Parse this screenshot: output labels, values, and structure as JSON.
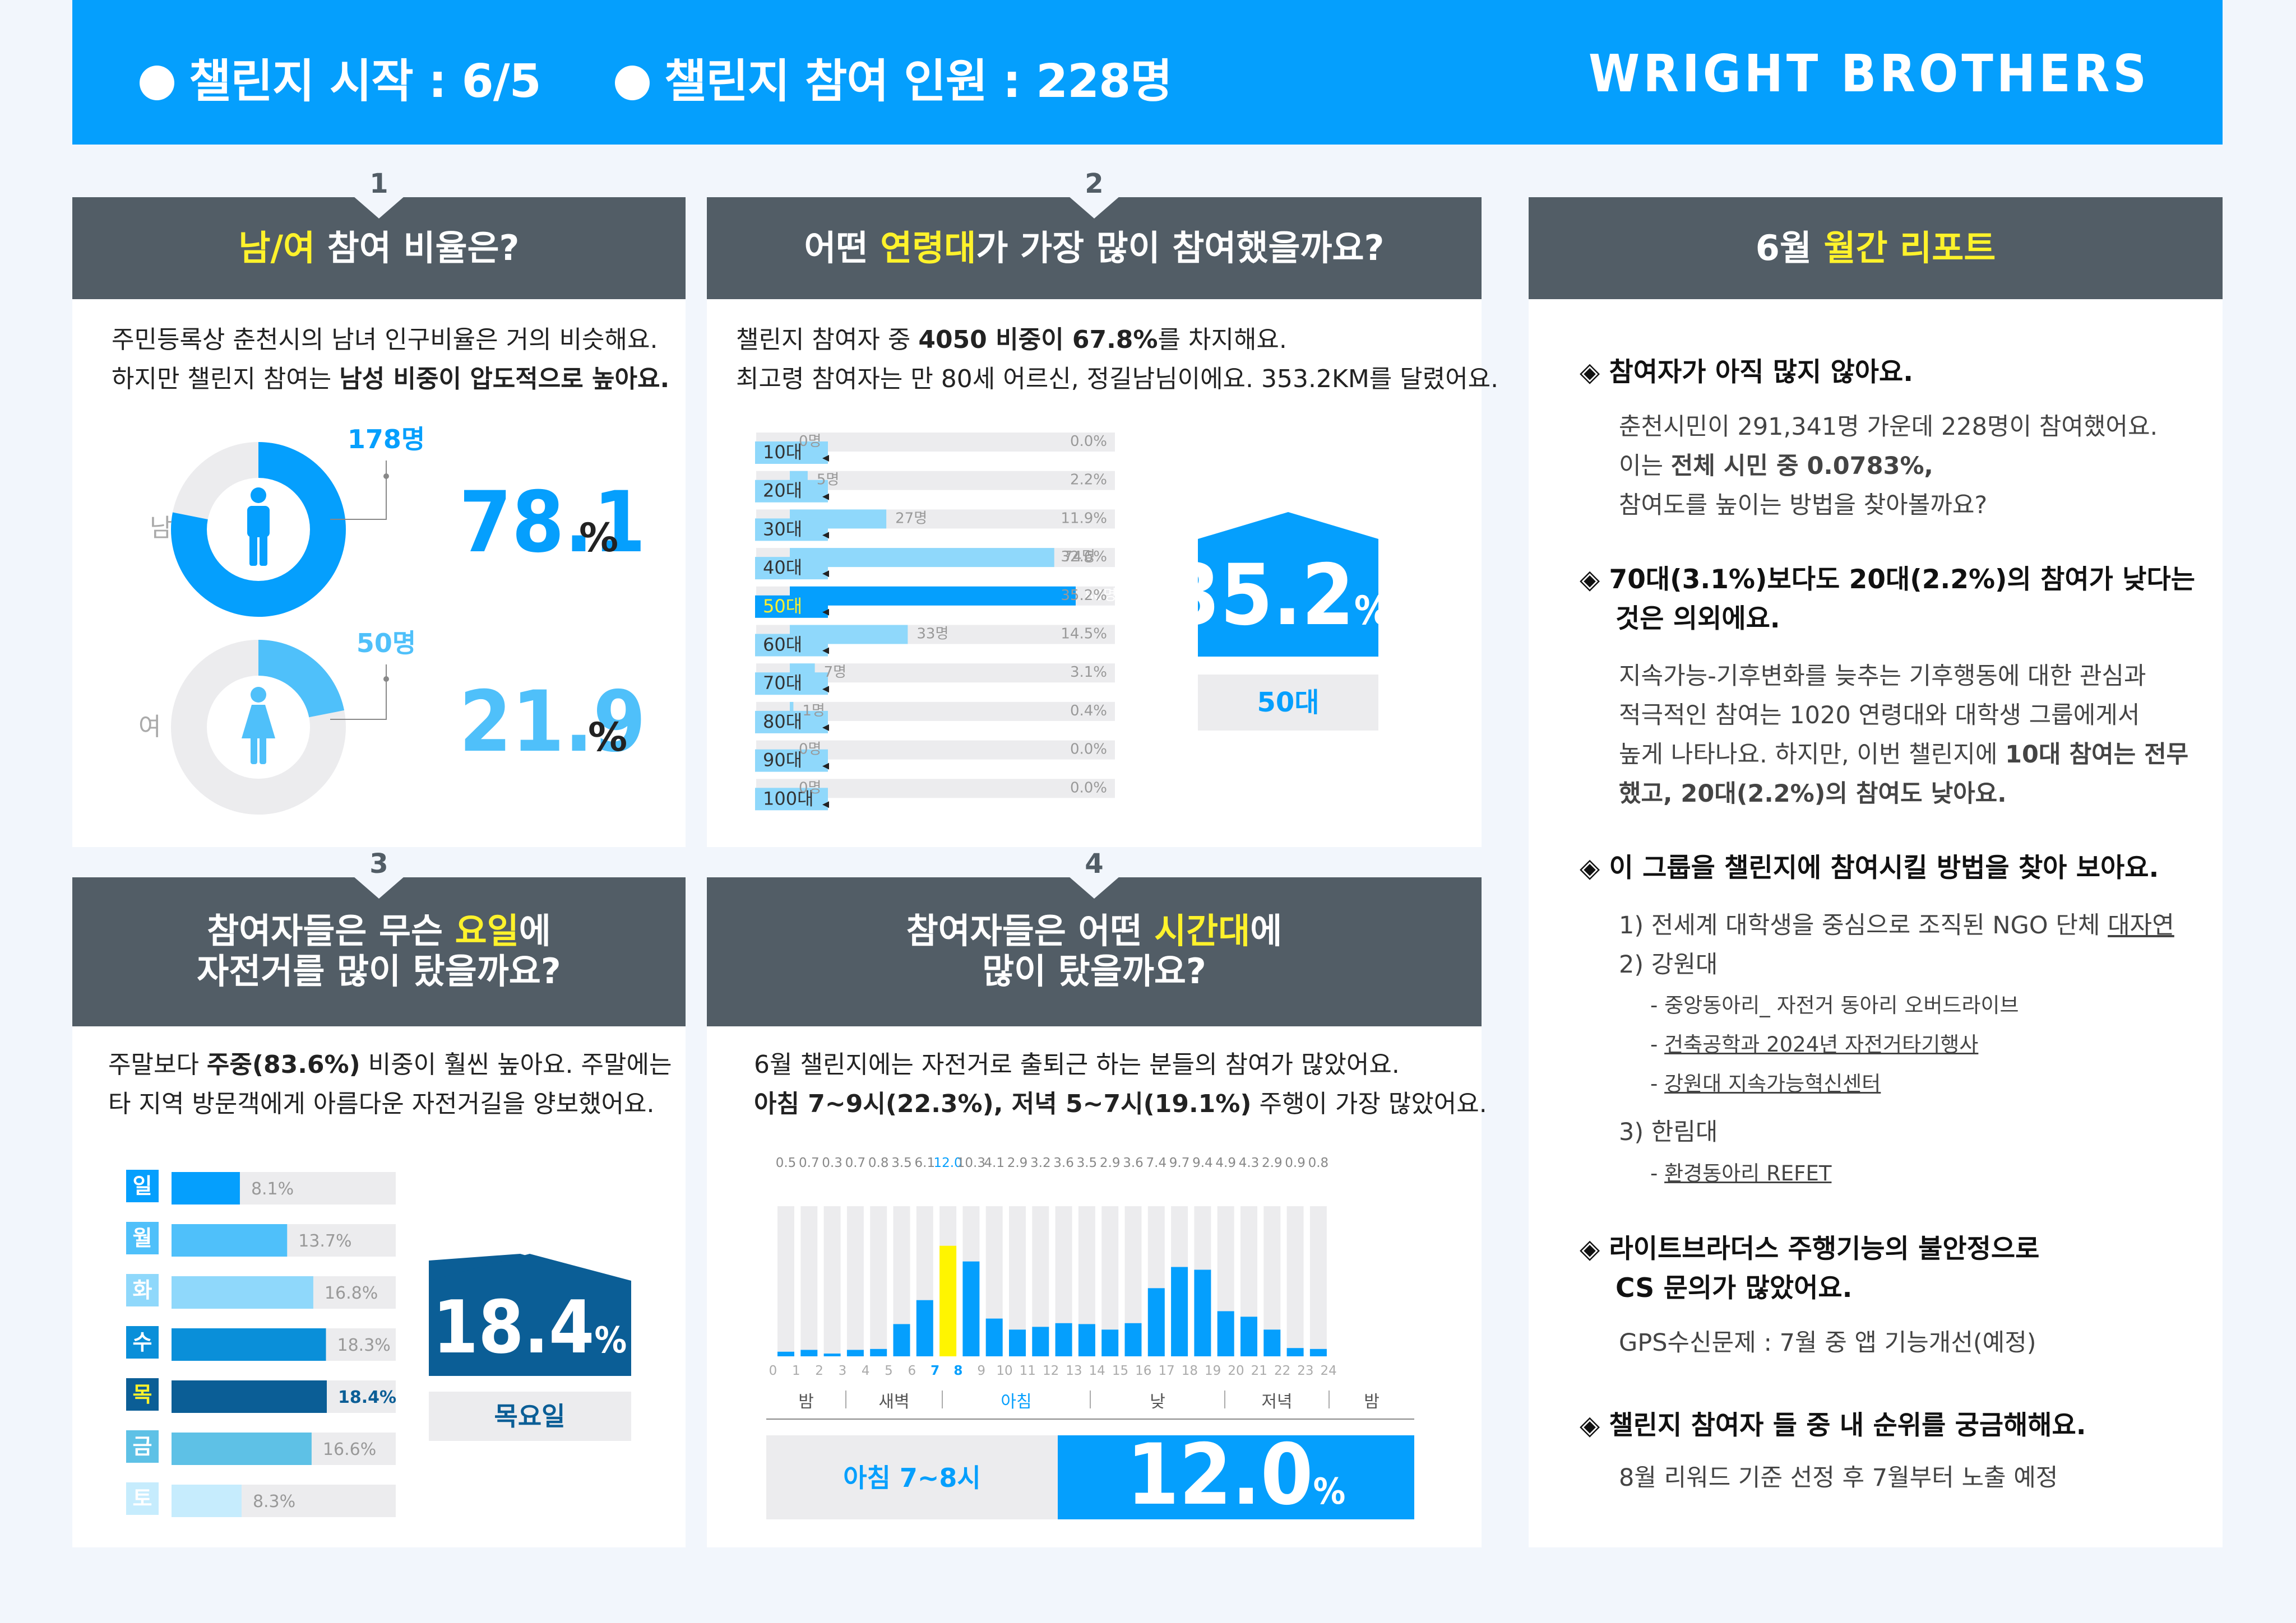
{
  "header": {
    "stat1": "챌린지 시작 : 6/5",
    "stat2": "챌린지 참여 인원 : 228명",
    "brand": "WRIGHT BROTHERS"
  },
  "colors": {
    "blue": "#059ffd",
    "dark": "#525d66",
    "yellow": "#fff22b",
    "navy": "#0b5e96",
    "lightgray": "#ececee"
  },
  "p1": {
    "num": "1",
    "title_hl": "남/여",
    "title_rest": " 참여 비율은?",
    "line1": "주민등록상 춘천시의 남녀 인구비율은 거의 비슷해요.",
    "line2_pre": "하지만 챌린지 참여는 ",
    "line2_b": "남성 비중이 압도적으로 높아요.",
    "male_label": "남",
    "male_count": "178명",
    "male_pct": "78.1",
    "female_label": "여",
    "female_count": "50명",
    "female_pct": "21.9",
    "pct_sign": "%",
    "male_icon": "man-icon",
    "female_icon": "woman-icon"
  },
  "p2": {
    "num": "2",
    "title_pre": "어떤 ",
    "title_hl": "연령대",
    "title_post": "가 가장 많이 참여했을까요?",
    "line1_pre": "챌린지 참여자 중 ",
    "line1_b": "4050 비중이 67.8%",
    "line1_post": "를 차지해요.",
    "line2": "최고령 참여자는 만 80세 어르신, 정길남님이에요. 353.2KM를 달렸어요.",
    "highlight_pct": "35.2",
    "highlight_label": "50대"
  },
  "p3": {
    "num": "3",
    "title1_pre": "참여자들은 무슨 ",
    "title1_hl": "요일",
    "title1_post": "에",
    "title2": "자전거를 많이 탔을까요?",
    "line1_pre": "주말보다 ",
    "line1_b": "주중(83.6%)",
    "line1_post": " 비중이 훨씬 높아요. 주말에는",
    "line2": "타 지역 방문객에게 아름다운 자전거길을 양보했어요.",
    "highlight_pct": "18.4",
    "highlight_label": "목요일"
  },
  "p4": {
    "num": "4",
    "title1_pre": "참여자들은 어떤 ",
    "title1_hl": "시간대",
    "title1_post": "에",
    "title2": "많이 탔을까요?",
    "line1": "6월 챌린지에는 자전거로 출퇴근 하는 분들의 참여가 많았어요.",
    "line2_b": "아침 7~9시(22.3%), 저녁 5~7시(19.1%)",
    "line2_post": " 주행이 가장 많았어요.",
    "periods": [
      "밤",
      "새벽",
      "아침",
      "낮",
      "저녁",
      "밤"
    ],
    "highlight_label": "아침 7~8시",
    "highlight_pct": "12.0"
  },
  "report": {
    "title_pre": "6월 ",
    "title_hl": "월간 리포트",
    "bullet": "◈",
    "s1_h": "참여자가 아직 많지 않아요.",
    "s1_l1": "춘천시민이 291,341명 가운데 228명이 참여했어요.",
    "s1_l2_pre": "이는 ",
    "s1_l2_b": "전체 시민 중 0.0783%,",
    "s1_l3": "참여도를 높이는 방법을 찾아볼까요?",
    "s2_h1": "70대(3.1%)보다도 20대(2.2%)의 참여가 낮다는",
    "s2_h2": "것은 의외에요.",
    "s2_l1": "지속가능-기후변화를 늦추는 기후행동에 대한 관심과",
    "s2_l2": "적극적인 참여는 1020 연령대와 대학생 그룹에게서",
    "s2_l3_pre": "높게 나타나요. 하지만, 이번 챌린지에 ",
    "s2_l3_b": "10대 참여는 전무",
    "s2_l4_b": "했고, 20대(2.2%)의 참여도 낮아요.",
    "s3_h": "이 그룹을 챌린지에 참여시킬 방법을 찾아 보아요.",
    "s3_1_pre": "1) 전세계 대학생을 중심으로 조직된 NGO 단체 ",
    "s3_1_link": "대자연",
    "s3_2": "2) 강원대",
    "s3_2a": "- 중앙동아리_ 자전거 동아리 오버드라이브",
    "s3_2b_pre": "- ",
    "s3_2b_link": "건축공학과 2024년 자전거타기행사",
    "s3_2c_pre": "- ",
    "s3_2c_link": "강원대 지속가능혁신센터",
    "s3_3": "3) 한림대",
    "s3_3a_pre": "- ",
    "s3_3a_link": "환경동아리 REFET",
    "s4_h1": "라이트브라더스 주행기능의 불안정으로",
    "s4_h2": "CS 문의가 많았어요.",
    "s4_l1": "GPS수신문제 : 7월 중 앱 기능개선(예정)",
    "s5_h": "챌린지 참여자 들 중 내 순위를 궁금해해요.",
    "s5_l1": "8월 리워드 기준 선정 후 7월부터 노출 예정"
  },
  "chart_data": [
    {
      "type": "pie",
      "title": "남/여 참여 비율은?",
      "categories": [
        "남",
        "여"
      ],
      "counts": [
        178,
        50
      ],
      "values": [
        78.1,
        21.9
      ],
      "unit": "%"
    },
    {
      "type": "bar",
      "title": "어떤 연령대가 가장 많이 참여했을까요?",
      "categories": [
        "10대",
        "20대",
        "30대",
        "40대",
        "50대",
        "60대",
        "70대",
        "80대",
        "90대",
        "100대"
      ],
      "counts": [
        0,
        5,
        27,
        74,
        80,
        33,
        7,
        1,
        0,
        0
      ],
      "values": [
        0.0,
        2.2,
        11.9,
        32.6,
        35.2,
        14.5,
        3.1,
        0.4,
        0.0,
        0.0
      ],
      "count_labels": [
        "0명",
        "5명",
        "27명",
        "74명",
        "80명",
        "33명",
        "7명",
        "1명",
        "0명",
        "0명"
      ],
      "pct_labels": [
        "0.0%",
        "2.2%",
        "11.9%",
        "32.6%",
        "35.2%",
        "14.5%",
        "3.1%",
        "0.4%",
        "0.0%",
        "0.0%"
      ],
      "highlight": "50대"
    },
    {
      "type": "bar",
      "title": "참여자들은 무슨 요일에 자전거를 많이 탔을까요?",
      "categories": [
        "일",
        "월",
        "화",
        "수",
        "목",
        "금",
        "토"
      ],
      "values": [
        8.1,
        13.7,
        16.8,
        18.3,
        18.4,
        16.6,
        8.3
      ],
      "pct_labels": [
        "8.1%",
        "13.7%",
        "16.8%",
        "18.3%",
        "18.4%",
        "16.6%",
        "8.3%"
      ],
      "colors": [
        "#059ffd",
        "#4fc0fa",
        "#8fd8fb",
        "#0a8fd9",
        "#0b5e96",
        "#5ec1e6",
        "#c6ecfd"
      ],
      "highlight": "목"
    },
    {
      "type": "bar",
      "title": "참여자들은 어떤 시간대에 많이 탔을까요?",
      "x": [
        "0",
        "1",
        "2",
        "3",
        "4",
        "5",
        "6",
        "7",
        "8",
        "9",
        "10",
        "11",
        "12",
        "13",
        "14",
        "15",
        "16",
        "17",
        "18",
        "19",
        "20",
        "21",
        "22",
        "23"
      ],
      "x_tick_labels": [
        "0",
        "1",
        "2",
        "3",
        "4",
        "5",
        "6",
        "7",
        "8",
        "9",
        "10",
        "11",
        "12",
        "13",
        "14",
        "15",
        "16",
        "17",
        "18",
        "19",
        "20",
        "21",
        "22",
        "23",
        "24"
      ],
      "values": [
        0.5,
        0.7,
        0.3,
        0.7,
        0.8,
        3.5,
        6.1,
        12.0,
        10.3,
        4.1,
        2.9,
        3.2,
        3.6,
        3.5,
        2.9,
        3.6,
        7.4,
        9.7,
        9.4,
        4.9,
        4.3,
        2.9,
        0.9,
        0.8
      ],
      "value_labels": [
        "0.5",
        "0.7",
        "0.3",
        "0.7",
        "0.8",
        "3.5",
        "6.1",
        "12.0",
        "10.3",
        "4.1",
        "2.9",
        "3.2",
        "3.6",
        "3.5",
        "2.9",
        "3.6",
        "7.4",
        "9.7",
        "9.4",
        "4.9",
        "4.3",
        "2.9",
        "0.9",
        "0.8"
      ],
      "ylim": [
        0,
        16.3
      ],
      "highlight": "7"
    }
  ]
}
